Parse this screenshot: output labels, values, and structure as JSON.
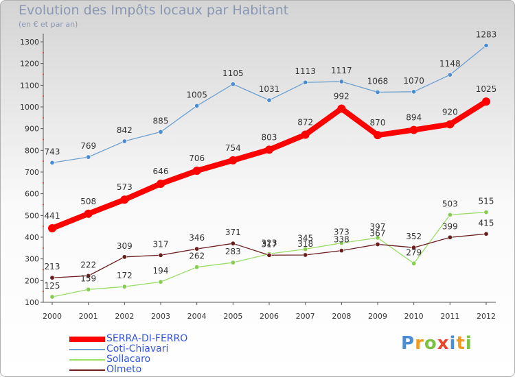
{
  "header": {
    "title": "Evolution des Impôts locaux par Habitant",
    "subtitle": "(en € et par an)"
  },
  "colors": {
    "text": "#8a97b3",
    "axis": "#555555",
    "grid_tick": "#cc3333",
    "label": "#333333"
  },
  "chart_data": {
    "type": "line",
    "title": "Evolution des Impôts locaux par Habitant",
    "subtitle": "(en € et par an)",
    "xlabel": "",
    "ylabel": "",
    "x": [
      "2000",
      "2001",
      "2002",
      "2003",
      "2004",
      "2005",
      "2006",
      "2007",
      "2008",
      "2009",
      "2010",
      "2011",
      "2012"
    ],
    "ylim": [
      100,
      1300
    ],
    "yticks": [
      100,
      200,
      300,
      400,
      500,
      600,
      700,
      800,
      900,
      1000,
      1100,
      1200,
      1300
    ],
    "grid": false,
    "legend_position": "bottom-left",
    "series": [
      {
        "name": "SERRA-DI-FERRO",
        "color": "#ff0000",
        "label_color": "#3355dd",
        "width": 8,
        "marker": 6,
        "values": [
          441,
          508,
          573,
          646,
          706,
          754,
          803,
          872,
          992,
          870,
          894,
          920,
          1025
        ]
      },
      {
        "name": "Coti-Chiavari",
        "color": "#6b9fcf",
        "label_color": "#3355dd",
        "width": 1.3,
        "marker": 3.2,
        "marker_color": "#4a8ccf",
        "values": [
          743,
          769,
          842,
          885,
          1005,
          1105,
          1031,
          1113,
          1117,
          1068,
          1070,
          1148,
          1283
        ]
      },
      {
        "name": "Sollacaro",
        "color": "#99dd66",
        "label_color": "#3355dd",
        "width": 1.3,
        "marker": 3.2,
        "marker_color": "#88cc55",
        "values": [
          125,
          159,
          172,
          194,
          262,
          283,
          323,
          345,
          373,
          397,
          279,
          503,
          515
        ]
      },
      {
        "name": "Olmeto",
        "color": "#6b1d1d",
        "label_color": "#3355dd",
        "width": 1.3,
        "marker": 3.2,
        "marker_color": "#6b1d1d",
        "values": [
          213,
          222,
          309,
          317,
          346,
          371,
          317,
          318,
          338,
          367,
          352,
          399,
          415
        ]
      }
    ]
  },
  "logo": {
    "text": "Proxiti",
    "letters": [
      "P",
      "r",
      "o",
      "x",
      "i",
      "t",
      "i"
    ],
    "colors": [
      "#4a8fd6",
      "#f39a1e",
      "#7cc242",
      "#e8452c",
      "#4a8fd6",
      "#f39a1e",
      "#7cc242"
    ]
  }
}
